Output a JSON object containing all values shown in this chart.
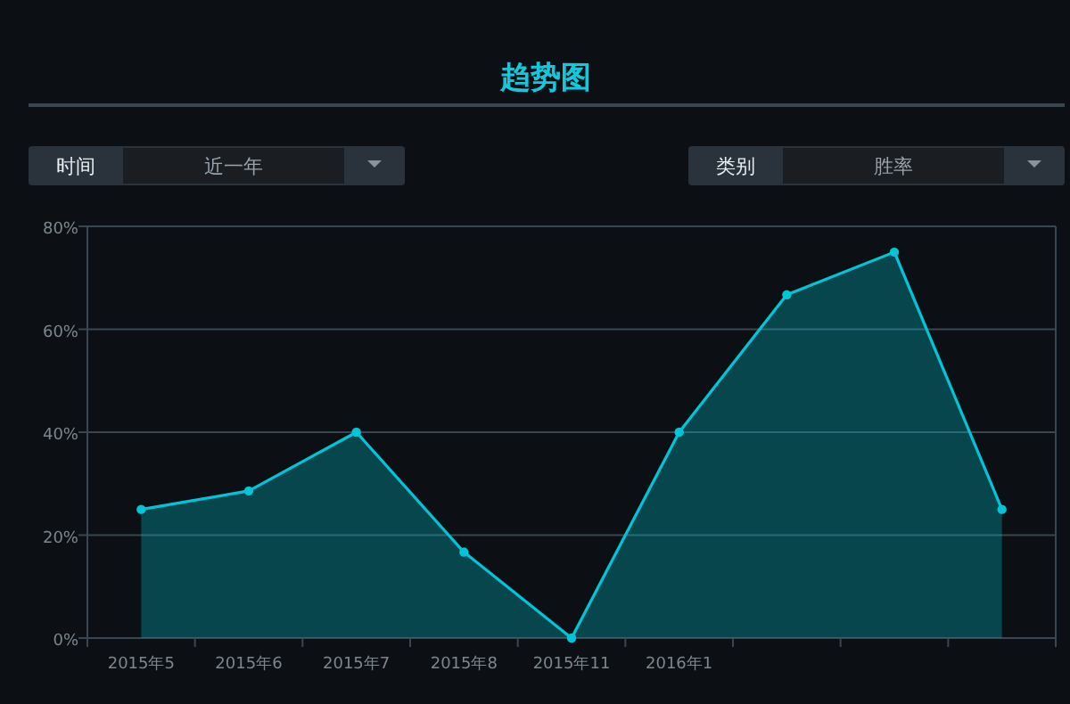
{
  "chart_data": {
    "type": "area",
    "title": "趋势图",
    "annotations": [
      "时间",
      "近一年",
      "类别",
      "胜率"
    ],
    "categories": [
      "2015年5",
      "2015年6",
      "2015年7",
      "2015年8",
      "2015年11",
      "2016年1",
      null,
      null,
      null
    ],
    "series": [
      {
        "color": "#00c5d6",
        "values": [
          25,
          28.6,
          40,
          16.7,
          0,
          40,
          66.7,
          75,
          25
        ]
      }
    ],
    "ylim": [
      0,
      80
    ],
    "yticks": [
      {
        "value": 0,
        "label": "0%"
      },
      {
        "value": 20,
        "label": "20%"
      },
      {
        "value": 40,
        "label": "40%"
      },
      {
        "value": 60,
        "label": "60%"
      },
      {
        "value": 80,
        "label": "80%"
      }
    ],
    "grid": "y",
    "marker": "circle",
    "line_style": "solid"
  }
}
